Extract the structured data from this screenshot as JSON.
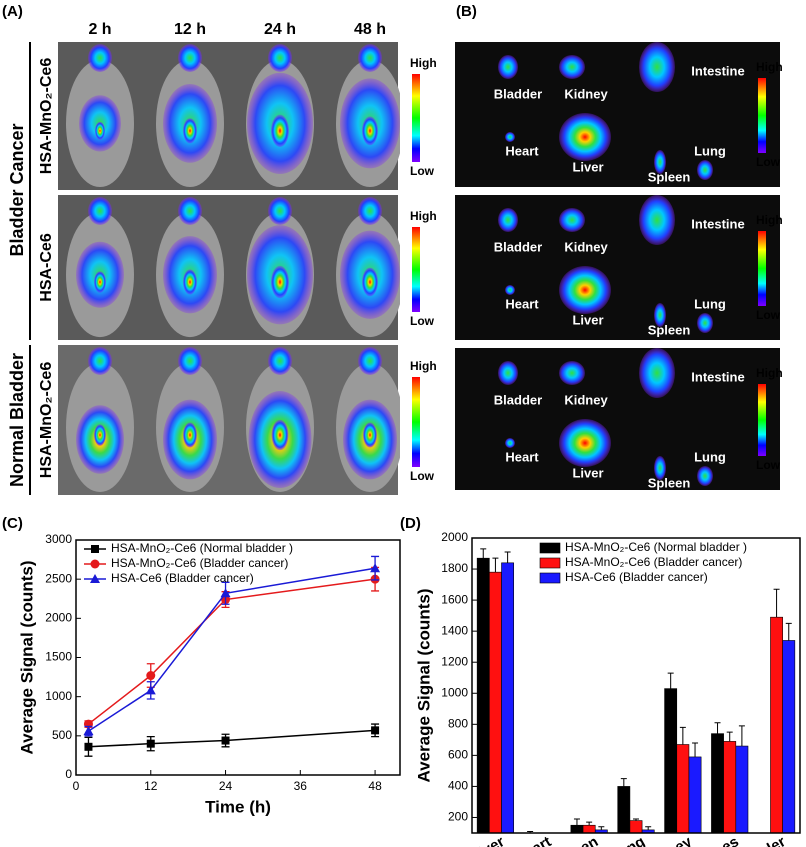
{
  "panel_labels": [
    "(A)",
    "(B)",
    "(C)",
    "(D)"
  ],
  "imaging": {
    "times": [
      "2 h",
      "12 h",
      "24 h",
      "48 h"
    ],
    "groups": [
      "Bladder Cancer",
      "Normal Bladder"
    ],
    "rows": [
      "HSA-MnO₂-Ce6",
      "HSA-Ce6",
      "HSA-MnO₂-Ce6"
    ],
    "scale": [
      "High",
      "Low"
    ],
    "organs": [
      "Bladder",
      "Kidney",
      "Intestine",
      "Heart",
      "Liver",
      "Lung",
      "Spleen"
    ]
  },
  "chart_data": [
    {
      "type": "line",
      "x_label": "Time (h)",
      "y_label": "Average Signal (counts)",
      "x": [
        2,
        12,
        24,
        48
      ],
      "xlim": [
        0,
        52
      ],
      "xticks": [
        0,
        12,
        24,
        36,
        48
      ],
      "ylim": [
        0,
        3000
      ],
      "yticks": [
        0,
        500,
        1000,
        1500,
        2000,
        2500,
        3000
      ],
      "legend": "upper left",
      "series": [
        {
          "name": "HSA-MnO₂-Ce6 (Normal bladder )",
          "color": "#000000",
          "marker": "square",
          "values": [
            360,
            400,
            440,
            570
          ],
          "errors": [
            120,
            90,
            80,
            80
          ]
        },
        {
          "name": "HSA-MnO₂-Ce6 (Bladder cancer)",
          "color": "#e41a1c",
          "marker": "circle",
          "values": [
            650,
            1270,
            2240,
            2500
          ],
          "errors": [
            40,
            150,
            100,
            150
          ]
        },
        {
          "name": "HSA-Ce6 (Bladder cancer)",
          "color": "#1a1ad6",
          "marker": "triangle",
          "values": [
            560,
            1080,
            2320,
            2640
          ],
          "errors": [
            60,
            110,
            140,
            150
          ]
        }
      ]
    },
    {
      "type": "bar",
      "y_label": "Average Signal (counts)",
      "categories": [
        "Liver",
        "Heart",
        "Spleen",
        "Lung",
        "Kidney",
        "Intestines",
        "Bladder"
      ],
      "ylim": [
        100,
        2000
      ],
      "yticks": [
        200,
        400,
        600,
        800,
        1000,
        1200,
        1400,
        1600,
        1800,
        2000
      ],
      "legend": "upper center",
      "series": [
        {
          "name": "HSA-MnO₂-Ce6 (Normal bladder )",
          "color": "#000000",
          "values": [
            1870,
            90,
            150,
            400,
            1030,
            740,
            60
          ],
          "errors": [
            60,
            20,
            40,
            50,
            100,
            70,
            20
          ]
        },
        {
          "name": "HSA-MnO₂-Ce6 (Bladder cancer)",
          "color": "#ff1010",
          "values": [
            1780,
            60,
            150,
            180,
            670,
            690,
            1490
          ],
          "errors": [
            90,
            10,
            20,
            10,
            110,
            60,
            180
          ]
        },
        {
          "name": "HSA-Ce6 (Bladder cancer)",
          "color": "#1a1aff",
          "values": [
            1840,
            50,
            120,
            120,
            590,
            660,
            1340
          ],
          "errors": [
            70,
            10,
            20,
            20,
            90,
            130,
            110
          ]
        }
      ]
    }
  ]
}
